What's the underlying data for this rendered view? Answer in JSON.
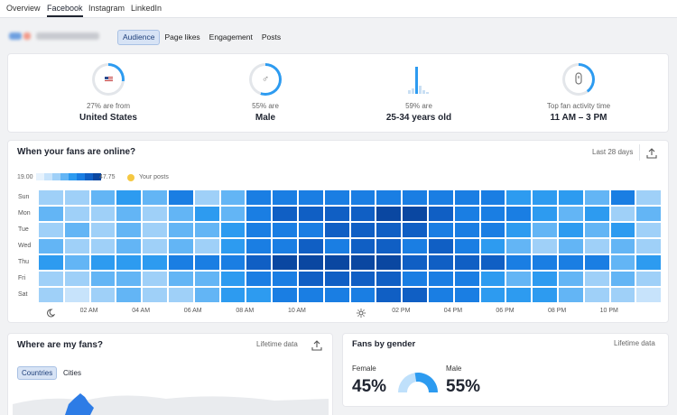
{
  "nav": {
    "tabs": [
      "Overview",
      "Facebook",
      "Instagram",
      "LinkedIn"
    ],
    "active": "Facebook"
  },
  "subtabs": [
    "Audience",
    "Page likes",
    "Engagement",
    "Posts"
  ],
  "summary": [
    {
      "icon": "us-flag-icon",
      "sub": "27% are from",
      "value": "United States",
      "percent": 27
    },
    {
      "icon": "male-gender-icon",
      "sub": "55% are",
      "value": "Male",
      "percent": 55
    },
    {
      "icon": "age-bars-icon",
      "sub": "59% are",
      "value": "25-34 years old",
      "percent": 59
    },
    {
      "icon": "clock-icon",
      "sub": "Top fan activity time",
      "value": "11 AM – 3 PM",
      "percent": 40
    }
  ],
  "online": {
    "title": "When your fans are online?",
    "period": "Last 28 days",
    "legend_min": "19.00",
    "legend_max": "47.75",
    "your_posts": "Your posts",
    "days": [
      "Sun",
      "Mon",
      "Tue",
      "Wed",
      "Thu",
      "Fri",
      "Sat"
    ],
    "hours": [
      "02 AM",
      "04 AM",
      "06 AM",
      "08 AM",
      "10 AM",
      "02 PM",
      "04 PM",
      "06 PM",
      "08 PM",
      "10 PM"
    ],
    "levels": [
      [
        2,
        2,
        3,
        4,
        3,
        5,
        2,
        3,
        5,
        5,
        5,
        5,
        5,
        5,
        5,
        5,
        5,
        5,
        4,
        4,
        4,
        3,
        5,
        2
      ],
      [
        3,
        2,
        2,
        3,
        2,
        3,
        4,
        3,
        5,
        6,
        6,
        6,
        6,
        7,
        7,
        6,
        5,
        5,
        5,
        4,
        3,
        4,
        2,
        3
      ],
      [
        2,
        3,
        2,
        3,
        2,
        3,
        3,
        4,
        5,
        5,
        5,
        6,
        6,
        6,
        6,
        5,
        5,
        5,
        4,
        3,
        4,
        3,
        4,
        2
      ],
      [
        3,
        2,
        2,
        3,
        2,
        3,
        2,
        4,
        5,
        5,
        6,
        5,
        6,
        6,
        5,
        6,
        5,
        4,
        3,
        2,
        3,
        2,
        3,
        2
      ],
      [
        4,
        3,
        4,
        4,
        4,
        5,
        5,
        5,
        6,
        7,
        7,
        7,
        7,
        7,
        6,
        6,
        6,
        6,
        5,
        5,
        5,
        5,
        3,
        4
      ],
      [
        2,
        2,
        3,
        3,
        2,
        3,
        3,
        4,
        5,
        5,
        6,
        6,
        6,
        6,
        5,
        5,
        5,
        4,
        3,
        4,
        3,
        2,
        3,
        2
      ],
      [
        2,
        1,
        2,
        3,
        2,
        2,
        3,
        4,
        4,
        5,
        5,
        5,
        5,
        6,
        6,
        5,
        5,
        4,
        4,
        4,
        3,
        2,
        2,
        1
      ]
    ],
    "colors": [
      "#e6f2fd",
      "#c7e3fb",
      "#9fd0f8",
      "#63b5f5",
      "#2d9bf0",
      "#1a7ee3",
      "#105fc4",
      "#0a47a1"
    ]
  },
  "where": {
    "title": "Where are my fans?",
    "period": "Lifetime data",
    "toggles": [
      "Countries",
      "Cities"
    ]
  },
  "gender": {
    "title": "Fans by gender",
    "period": "Lifetime data",
    "female_label": "Female",
    "female_value": "45%",
    "male_label": "Male",
    "male_value": "55%",
    "female_pct": 45,
    "male_pct": 55,
    "female_color": "#bfe0fb",
    "male_color": "#2d9bf0"
  }
}
